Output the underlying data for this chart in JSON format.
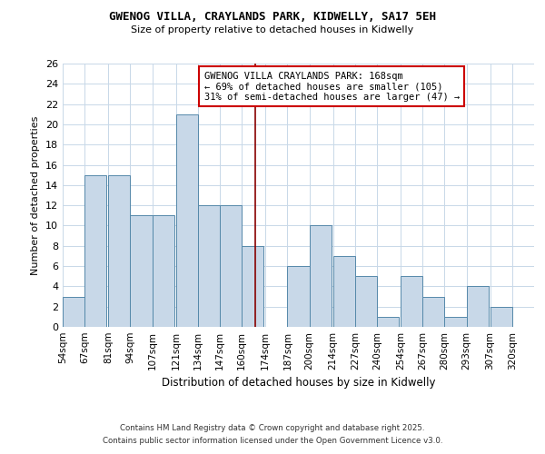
{
  "title": "GWENOG VILLA, CRAYLANDS PARK, KIDWELLY, SA17 5EH",
  "subtitle": "Size of property relative to detached houses in Kidwelly",
  "xlabel": "Distribution of detached houses by size in Kidwelly",
  "ylabel": "Number of detached properties",
  "bin_labels": [
    "54sqm",
    "67sqm",
    "81sqm",
    "94sqm",
    "107sqm",
    "121sqm",
    "134sqm",
    "147sqm",
    "160sqm",
    "174sqm",
    "187sqm",
    "200sqm",
    "214sqm",
    "227sqm",
    "240sqm",
    "254sqm",
    "267sqm",
    "280sqm",
    "293sqm",
    "307sqm",
    "320sqm"
  ],
  "bar_heights": [
    3,
    15,
    15,
    11,
    11,
    21,
    12,
    12,
    8,
    0,
    6,
    10,
    7,
    5,
    1,
    5,
    3,
    1,
    4,
    2,
    0
  ],
  "bar_color": "#c8d8e8",
  "bar_edge_color": "#5588aa",
  "vline_x": 168,
  "vline_color": "#880000",
  "ylim": [
    0,
    26
  ],
  "yticks": [
    0,
    2,
    4,
    6,
    8,
    10,
    12,
    14,
    16,
    18,
    20,
    22,
    24,
    26
  ],
  "annotation_title": "GWENOG VILLA CRAYLANDS PARK: 168sqm",
  "annotation_line1": "← 69% of detached houses are smaller (105)",
  "annotation_line2": "31% of semi-detached houses are larger (47) →",
  "annotation_box_color": "#ffffff",
  "annotation_box_edge": "#cc0000",
  "footer1": "Contains HM Land Registry data © Crown copyright and database right 2025.",
  "footer2": "Contains public sector information licensed under the Open Government Licence v3.0.",
  "background_color": "#ffffff",
  "grid_color": "#c8d8e8",
  "bin_edges": [
    54,
    67,
    81,
    94,
    107,
    121,
    134,
    147,
    160,
    174,
    187,
    200,
    214,
    227,
    240,
    254,
    267,
    280,
    293,
    307,
    320
  ]
}
